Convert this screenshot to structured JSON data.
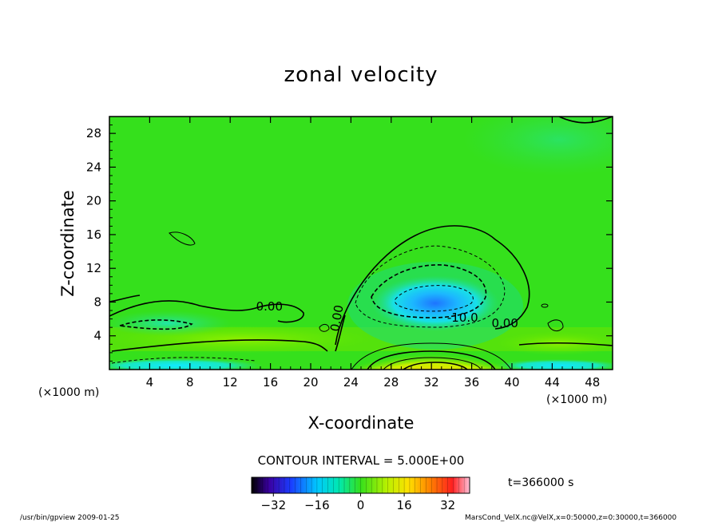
{
  "chart_data": {
    "type": "heatmap",
    "title": "zonal velocity",
    "xlabel": "X-coordinate",
    "ylabel": "Z-coordinate",
    "x_unit_left": "(×1000 m)",
    "x_unit_right": "(×1000 m)",
    "xlim": [
      0,
      50
    ],
    "ylim": [
      0,
      30
    ],
    "x_ticks": [
      4,
      8,
      12,
      16,
      20,
      24,
      28,
      32,
      36,
      40,
      44,
      48
    ],
    "y_ticks": [
      4,
      8,
      12,
      16,
      20,
      24,
      28
    ],
    "contour_interval_label": "CONTOUR INTERVAL = 5.000E+00",
    "contour_labels": [
      {
        "text": "0.00",
        "x": 15.9,
        "y": 7.0
      },
      {
        "text": "0.00",
        "x": 23.0,
        "y": 6.0
      },
      {
        "text": "-10.0",
        "x": 35.1,
        "y": 5.7
      },
      {
        "text": "0.00",
        "x": 39.3,
        "y": 5.0
      }
    ],
    "features": [
      {
        "kind": "min",
        "x": 31.5,
        "y": 8.8,
        "value": -22
      },
      {
        "kind": "max",
        "x": 32.0,
        "y": 0.5,
        "value": 28
      },
      {
        "kind": "min",
        "x": 7.0,
        "y": 5.5,
        "value": -8
      },
      {
        "kind": "min",
        "x": 5.0,
        "y": 0.5,
        "value": -12
      }
    ],
    "colorbar": {
      "range": [
        -40,
        40
      ],
      "ticks": [
        -32,
        -16,
        0,
        16,
        32
      ],
      "tick_labels": [
        "−32",
        "−16",
        "0",
        "16",
        "32"
      ]
    },
    "time_label": "t=366000 s",
    "footer_left": "/usr/bin/gpview   2009-01-25",
    "footer_right": "MarsCond_VelX.nc@VelX,x=0:50000,z=0:30000,t=366000"
  },
  "colors": {
    "background_field": "#35e01c",
    "axis": "#000000"
  }
}
